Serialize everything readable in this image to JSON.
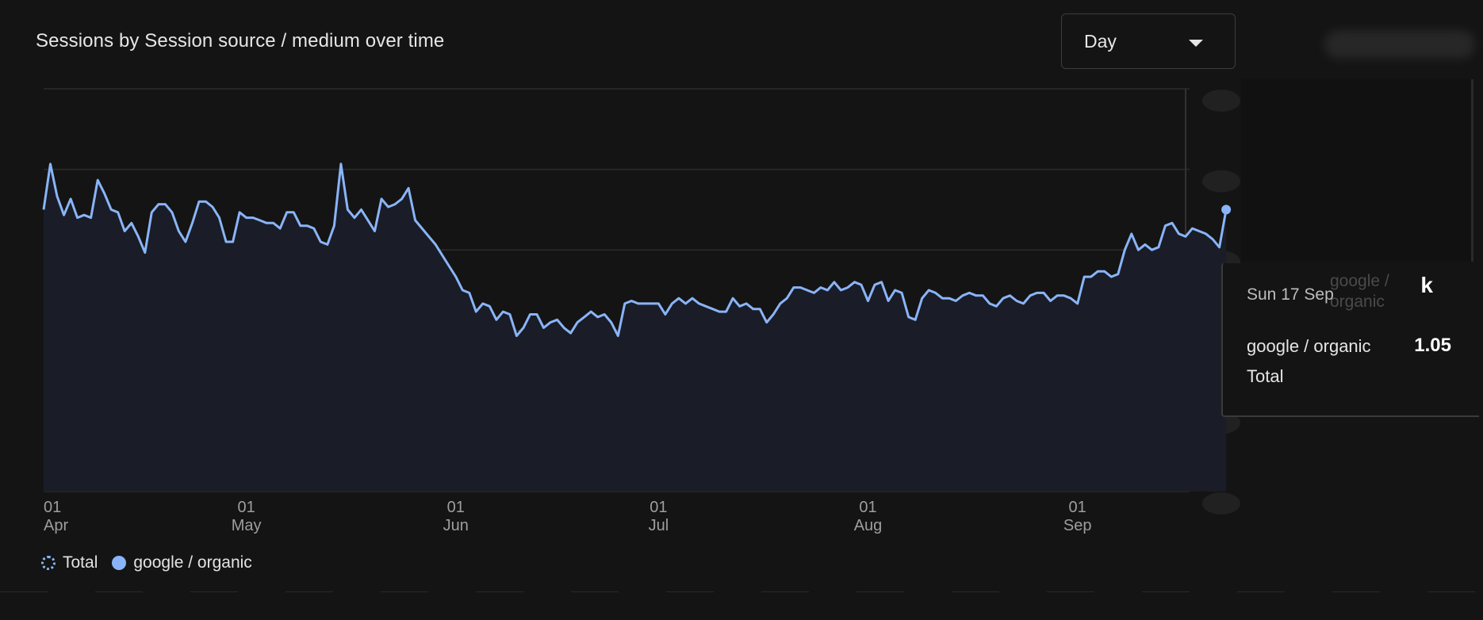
{
  "card": {
    "title": "Sessions by Session source / medium over time",
    "granularity": {
      "selected": "Day"
    }
  },
  "legend": {
    "items": [
      {
        "label": "Total",
        "style": "dotted"
      },
      {
        "label": "google / organic",
        "style": "solid"
      }
    ]
  },
  "tooltip": {
    "date": "Sun 17 Sep",
    "ghost_label": "google / organic",
    "value_suffix": "k",
    "series_label": "google / organic",
    "series_value": "1.05",
    "total_label": "Total"
  },
  "colors": {
    "series_line": "#8ab4f8",
    "area_fill": "#1a1d27",
    "grid": "#2c2c2c",
    "background": "#141414"
  },
  "chart_data": {
    "type": "area",
    "title": "Sessions by Session source / medium over time",
    "x_start": "2023-04-01",
    "x_end": "2023-09-17",
    "x_ticks": [
      {
        "day": "01",
        "month": "Apr"
      },
      {
        "day": "01",
        "month": "May"
      },
      {
        "day": "01",
        "month": "Jun"
      },
      {
        "day": "01",
        "month": "Jul"
      },
      {
        "day": "01",
        "month": "Aug"
      },
      {
        "day": "01",
        "month": "Sep"
      }
    ],
    "ylim": [
      0,
      1.5
    ],
    "grid": true,
    "legend_position": "bottom-left",
    "series": [
      {
        "name": "google / organic",
        "values": [
          1.05,
          1.22,
          1.1,
          1.03,
          1.09,
          1.02,
          1.03,
          1.02,
          1.16,
          1.11,
          1.05,
          1.04,
          0.97,
          1.0,
          0.95,
          0.89,
          1.04,
          1.07,
          1.07,
          1.04,
          0.97,
          0.93,
          1.0,
          1.08,
          1.08,
          1.06,
          1.02,
          0.93,
          0.93,
          1.04,
          1.02,
          1.02,
          1.01,
          1.0,
          1.0,
          0.98,
          1.04,
          1.04,
          0.99,
          0.99,
          0.98,
          0.93,
          0.92,
          0.99,
          1.22,
          1.05,
          1.02,
          1.05,
          1.01,
          0.97,
          1.09,
          1.06,
          1.07,
          1.09,
          1.13,
          1.01,
          0.98,
          0.95,
          0.92,
          0.88,
          0.84,
          0.8,
          0.75,
          0.74,
          0.67,
          0.7,
          0.69,
          0.64,
          0.67,
          0.66,
          0.58,
          0.61,
          0.66,
          0.66,
          0.61,
          0.63,
          0.64,
          0.61,
          0.59,
          0.63,
          0.65,
          0.67,
          0.65,
          0.66,
          0.63,
          0.58,
          0.7,
          0.71,
          0.7,
          0.7,
          0.7,
          0.7,
          0.66,
          0.7,
          0.72,
          0.7,
          0.72,
          0.7,
          0.69,
          0.68,
          0.67,
          0.67,
          0.72,
          0.69,
          0.7,
          0.68,
          0.68,
          0.63,
          0.66,
          0.7,
          0.72,
          0.76,
          0.76,
          0.75,
          0.74,
          0.76,
          0.75,
          0.78,
          0.75,
          0.76,
          0.78,
          0.77,
          0.71,
          0.77,
          0.78,
          0.71,
          0.75,
          0.74,
          0.65,
          0.64,
          0.72,
          0.75,
          0.74,
          0.72,
          0.72,
          0.71,
          0.73,
          0.74,
          0.73,
          0.73,
          0.7,
          0.69,
          0.72,
          0.73,
          0.71,
          0.7,
          0.73,
          0.74,
          0.74,
          0.71,
          0.73,
          0.73,
          0.72,
          0.7,
          0.8,
          0.8,
          0.82,
          0.82,
          0.8,
          0.81,
          0.9,
          0.96,
          0.9,
          0.92,
          0.9,
          0.91,
          0.99,
          1.0,
          0.96,
          0.95,
          0.98,
          0.97,
          0.96,
          0.94,
          0.91,
          1.05
        ]
      }
    ]
  }
}
